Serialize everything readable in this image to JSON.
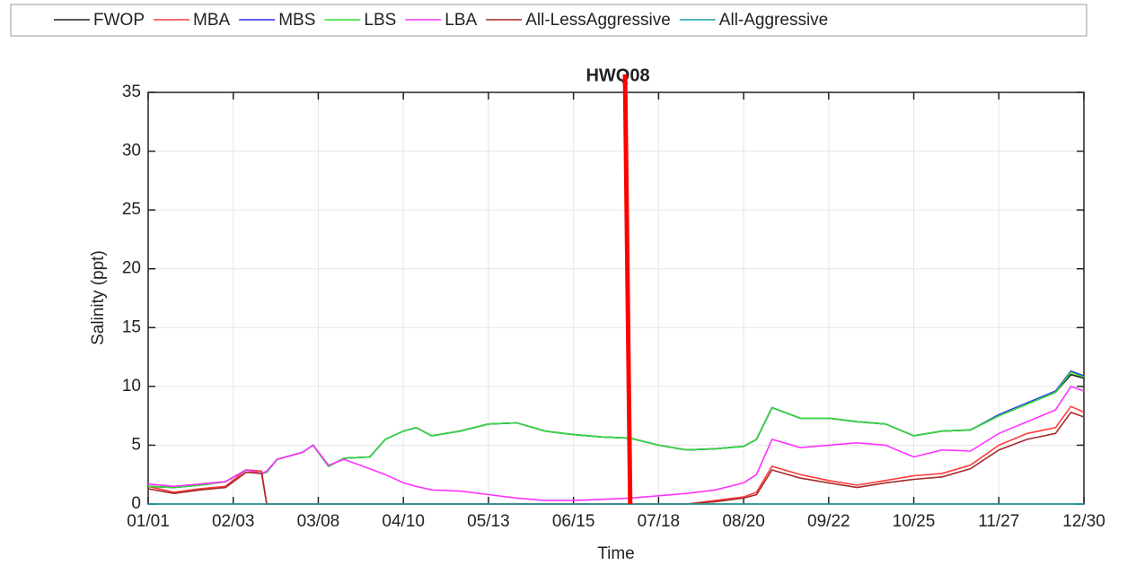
{
  "chart_data": {
    "type": "line",
    "title": "HWQ08",
    "xlabel": "Time",
    "ylabel": "Salinity (ppt)",
    "x": [
      0,
      10,
      20,
      30,
      38,
      44,
      46,
      50,
      60,
      64,
      70,
      76,
      86,
      92,
      99,
      104,
      110,
      121,
      132,
      143,
      154,
      165,
      176,
      187,
      198,
      209,
      220,
      231,
      236,
      242,
      253,
      264,
      275,
      286,
      297,
      308,
      319,
      330,
      341,
      352,
      358,
      363
    ],
    "series": [
      {
        "name": "FWOP",
        "color": "#222222",
        "values": [
          1.5,
          1.4,
          1.6,
          1.9,
          2.9,
          2.6,
          2.7,
          3.8,
          4.4,
          5.0,
          3.2,
          3.9,
          4.0,
          5.5,
          6.2,
          6.5,
          5.8,
          6.2,
          6.8,
          6.9,
          6.2,
          5.9,
          5.7,
          5.6,
          5.0,
          4.6,
          4.7,
          4.9,
          5.5,
          8.2,
          7.3,
          7.3,
          7.0,
          6.8,
          5.8,
          6.2,
          6.3,
          7.5,
          8.5,
          9.5,
          11.0,
          10.7
        ]
      },
      {
        "name": "MBA",
        "color": "#ff3b3b",
        "values": [
          1.5,
          1.0,
          1.3,
          1.5,
          2.9,
          2.8,
          0,
          0,
          0,
          0,
          0,
          0,
          0,
          0,
          0,
          0,
          0,
          0,
          0,
          0,
          0,
          0,
          0,
          0,
          0,
          0,
          0.3,
          0.6,
          1.0,
          3.2,
          2.5,
          2.0,
          1.6,
          2.0,
          2.4,
          2.6,
          3.3,
          5.0,
          6.0,
          6.5,
          8.3,
          7.8
        ]
      },
      {
        "name": "MBS",
        "color": "#2b2bff",
        "values": [
          1.5,
          1.4,
          1.6,
          1.9,
          2.9,
          2.6,
          2.7,
          3.8,
          4.4,
          5.0,
          3.2,
          3.9,
          4.0,
          5.5,
          6.2,
          6.5,
          5.8,
          6.2,
          6.8,
          6.9,
          6.2,
          5.9,
          5.7,
          5.6,
          5.0,
          4.6,
          4.7,
          4.9,
          5.5,
          8.2,
          7.3,
          7.3,
          7.0,
          6.8,
          5.8,
          6.2,
          6.3,
          7.6,
          8.6,
          9.6,
          11.3,
          10.9
        ]
      },
      {
        "name": "LBS",
        "color": "#33dd33",
        "values": [
          1.5,
          1.4,
          1.6,
          1.9,
          2.9,
          2.6,
          2.7,
          3.8,
          4.4,
          5.0,
          3.2,
          3.9,
          4.0,
          5.5,
          6.2,
          6.5,
          5.8,
          6.2,
          6.8,
          6.9,
          6.2,
          5.9,
          5.7,
          5.6,
          5.0,
          4.6,
          4.7,
          4.9,
          5.5,
          8.2,
          7.3,
          7.3,
          7.0,
          6.8,
          5.8,
          6.2,
          6.3,
          7.5,
          8.5,
          9.5,
          11.2,
          10.8
        ]
      },
      {
        "name": "LBA",
        "color": "#ff33ff",
        "values": [
          1.7,
          1.5,
          1.7,
          1.9,
          2.9,
          2.6,
          2.8,
          3.8,
          4.4,
          5.0,
          3.3,
          3.8,
          3.0,
          2.5,
          1.8,
          1.5,
          1.2,
          1.1,
          0.8,
          0.5,
          0.3,
          0.3,
          0.4,
          0.5,
          0.7,
          0.9,
          1.2,
          1.8,
          2.5,
          5.5,
          4.8,
          5.0,
          5.2,
          5.0,
          4.0,
          4.6,
          4.5,
          6.0,
          7.0,
          8.0,
          10.0,
          9.6
        ]
      },
      {
        "name": "All-LessAggressive",
        "color": "#a52a2a",
        "values": [
          1.3,
          0.9,
          1.2,
          1.4,
          2.7,
          2.6,
          0,
          0,
          0,
          0,
          0,
          0,
          0,
          0,
          0,
          0,
          0,
          0,
          0,
          0,
          0,
          0,
          0,
          0,
          0,
          0,
          0.2,
          0.5,
          0.8,
          2.9,
          2.2,
          1.8,
          1.4,
          1.8,
          2.1,
          2.3,
          3.0,
          4.6,
          5.5,
          6.0,
          7.8,
          7.4
        ]
      },
      {
        "name": "All-Aggressive",
        "color": "#1aa3a3",
        "values": [
          0,
          0,
          0,
          0,
          0,
          0,
          0,
          0,
          0,
          0,
          0,
          0,
          0,
          0,
          0,
          0,
          0,
          0,
          0,
          0,
          0,
          0,
          0,
          0,
          0,
          0,
          0,
          0,
          0,
          0,
          0,
          0,
          0,
          0,
          0,
          0,
          0,
          0,
          0,
          0,
          0,
          0
        ]
      }
    ],
    "xlim": [
      0,
      363
    ],
    "xticks": [
      {
        "value": 0,
        "label": "01/01"
      },
      {
        "value": 33,
        "label": "02/03"
      },
      {
        "value": 66,
        "label": "03/08"
      },
      {
        "value": 99,
        "label": "04/10"
      },
      {
        "value": 132,
        "label": "05/13"
      },
      {
        "value": 165,
        "label": "06/15"
      },
      {
        "value": 198,
        "label": "07/18"
      },
      {
        "value": 231,
        "label": "08/20"
      },
      {
        "value": 264,
        "label": "09/22"
      },
      {
        "value": 297,
        "label": "10/25"
      },
      {
        "value": 330,
        "label": "11/27"
      },
      {
        "value": 363,
        "label": "12/30"
      }
    ],
    "ylim": [
      0,
      35
    ],
    "yticks": [
      0,
      5,
      10,
      15,
      20,
      25,
      30,
      35
    ],
    "grid": true,
    "marker_line": {
      "x": [
        185,
        187
      ],
      "color": "#ff0000"
    }
  }
}
